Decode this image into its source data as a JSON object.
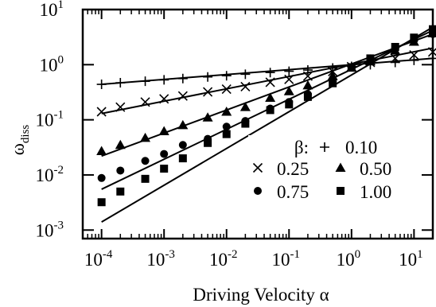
{
  "chart_data": {
    "type": "scatter",
    "xlabel": "Driving Velocity α",
    "ylabel_base": "ω",
    "ylabel_sub": "diss",
    "x_scale": "log",
    "y_scale": "log",
    "xlim": [
      5e-05,
      20
    ],
    "ylim": [
      0.0007,
      10
    ],
    "grid": false,
    "legend_position": "middle-right",
    "legend_title": "β:",
    "x_ticks": [
      {
        "value": 0.0001,
        "base": "10",
        "exp": "-4"
      },
      {
        "value": 0.001,
        "base": "10",
        "exp": "-3"
      },
      {
        "value": 0.01,
        "base": "10",
        "exp": "-2"
      },
      {
        "value": 0.1,
        "base": "10",
        "exp": "-1"
      },
      {
        "value": 1,
        "base": "10",
        "exp": "0"
      },
      {
        "value": 10,
        "base": "10",
        "exp": "1"
      }
    ],
    "y_ticks": [
      {
        "value": 0.001,
        "base": "10",
        "exp": "-3"
      },
      {
        "value": 0.01,
        "base": "10",
        "exp": "-2"
      },
      {
        "value": 0.1,
        "base": "10",
        "exp": "-1"
      },
      {
        "value": 1,
        "base": "10",
        "exp": "0"
      },
      {
        "value": 10,
        "base": "10",
        "exp": "1"
      }
    ],
    "series": [
      {
        "name": "0.10",
        "marker": "plus",
        "x": [
          0.0001,
          0.0002,
          0.0005,
          0.001,
          0.002,
          0.005,
          0.01,
          0.02,
          0.05,
          0.1,
          0.2,
          0.5,
          1,
          2,
          5,
          10,
          20
        ],
        "y": [
          0.44,
          0.47,
          0.5,
          0.53,
          0.56,
          0.6,
          0.63,
          0.67,
          0.72,
          0.76,
          0.8,
          0.87,
          0.93,
          1.0,
          1.1,
          1.2,
          1.3
        ],
        "fit": [
          [
            0.0001,
            0.44
          ],
          [
            20,
            1.3
          ]
        ]
      },
      {
        "name": "0.25",
        "marker": "cross",
        "x": [
          0.0001,
          0.0002,
          0.0005,
          0.001,
          0.002,
          0.005,
          0.01,
          0.02,
          0.05,
          0.1,
          0.2,
          0.5,
          1,
          2,
          5,
          10,
          20
        ],
        "y": [
          0.14,
          0.17,
          0.21,
          0.24,
          0.27,
          0.32,
          0.36,
          0.4,
          0.48,
          0.54,
          0.62,
          0.75,
          0.92,
          1.1,
          1.3,
          1.5,
          1.7
        ],
        "fit": [
          [
            0.0001,
            0.13
          ],
          [
            20,
            2.0
          ]
        ]
      },
      {
        "name": "0.50",
        "marker": "triangle",
        "x": [
          0.0001,
          0.0002,
          0.0005,
          0.001,
          0.002,
          0.005,
          0.01,
          0.02,
          0.05,
          0.1,
          0.2,
          0.5,
          1,
          2,
          5,
          10,
          20
        ],
        "y": [
          0.027,
          0.035,
          0.047,
          0.062,
          0.08,
          0.11,
          0.14,
          0.17,
          0.25,
          0.33,
          0.42,
          0.62,
          0.88,
          1.15,
          1.8,
          2.6,
          3.7
        ],
        "fit": [
          [
            0.0001,
            0.022
          ],
          [
            20,
            3.6
          ]
        ]
      },
      {
        "name": "0.75",
        "marker": "circle",
        "x": [
          0.0001,
          0.0002,
          0.0005,
          0.001,
          0.002,
          0.005,
          0.01,
          0.02,
          0.05,
          0.1,
          0.2,
          0.5,
          1,
          2,
          5,
          10,
          20
        ],
        "y": [
          0.0088,
          0.012,
          0.018,
          0.024,
          0.035,
          0.045,
          0.075,
          0.095,
          0.16,
          0.21,
          0.29,
          0.49,
          0.9,
          1.3,
          2.0,
          2.8,
          3.6
        ],
        "fit": [
          [
            0.0001,
            0.0055
          ],
          [
            20,
            4.2
          ]
        ]
      },
      {
        "name": "1.00",
        "marker": "square",
        "x": [
          0.0001,
          0.0002,
          0.0005,
          0.001,
          0.002,
          0.005,
          0.01,
          0.02,
          0.05,
          0.1,
          0.2,
          0.5,
          1,
          2,
          5,
          10,
          20
        ],
        "y": [
          0.0032,
          0.005,
          0.0085,
          0.013,
          0.02,
          0.038,
          0.055,
          0.085,
          0.15,
          0.19,
          0.26,
          0.46,
          0.9,
          1.3,
          2.1,
          3.1,
          4.4
        ],
        "fit": [
          [
            0.0001,
            0.0014
          ],
          [
            20,
            4.8
          ]
        ]
      }
    ]
  }
}
